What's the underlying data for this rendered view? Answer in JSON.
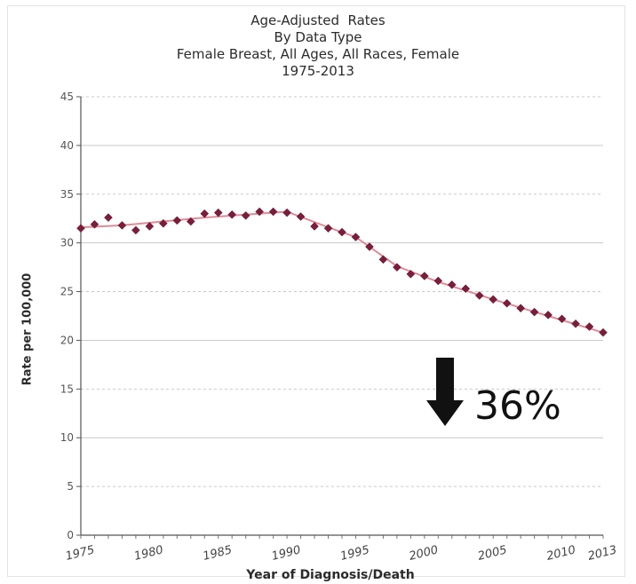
{
  "chart_data": {
    "type": "line",
    "title_lines": [
      "Age-Adjusted  Rates",
      "By Data Type",
      "Female Breast, All Ages, All Races, Female",
      "1975-2013"
    ],
    "xlabel": "Year of Diagnosis/Death",
    "ylabel": "Rate per 100,000",
    "xlim": [
      1975,
      2013
    ],
    "ylim": [
      0,
      45
    ],
    "x_ticks": [
      1975,
      1980,
      1985,
      1990,
      1995,
      2000,
      2005,
      2010,
      2013
    ],
    "y_ticks": [
      0,
      5,
      10,
      15,
      20,
      25,
      30,
      35,
      40,
      45
    ],
    "grid": true,
    "series": [
      {
        "style": "markers",
        "color": "#7a1e3c",
        "x": [
          1975,
          1976,
          1977,
          1978,
          1979,
          1980,
          1981,
          1982,
          1983,
          1984,
          1985,
          1986,
          1987,
          1988,
          1989,
          1990,
          1991,
          1992,
          1993,
          1994,
          1995,
          1996,
          1997,
          1998,
          1999,
          2000,
          2001,
          2002,
          2003,
          2004,
          2005,
          2006,
          2007,
          2008,
          2009,
          2010,
          2011,
          2012,
          2013
        ],
        "values": [
          31.5,
          31.9,
          32.6,
          31.8,
          31.3,
          31.7,
          32.0,
          32.3,
          32.2,
          33.0,
          33.1,
          32.9,
          32.8,
          33.2,
          33.2,
          33.1,
          32.7,
          31.7,
          31.5,
          31.1,
          30.6,
          29.6,
          28.3,
          27.5,
          26.8,
          26.6,
          26.1,
          25.7,
          25.3,
          24.6,
          24.2,
          23.8,
          23.3,
          22.9,
          22.6,
          22.2,
          21.7,
          21.4,
          20.8
        ]
      },
      {
        "style": "line",
        "color": "#e08a98",
        "x": [
          1975,
          1978,
          1981,
          1984,
          1987,
          1990,
          1993,
          1995,
          1998,
          2001,
          2005,
          2009,
          2013
        ],
        "values": [
          31.6,
          31.8,
          32.2,
          32.6,
          32.9,
          33.2,
          31.6,
          30.6,
          27.6,
          26.0,
          24.2,
          22.5,
          20.8
        ]
      }
    ],
    "annotation": {
      "text": "36%",
      "arrow": "down"
    }
  }
}
